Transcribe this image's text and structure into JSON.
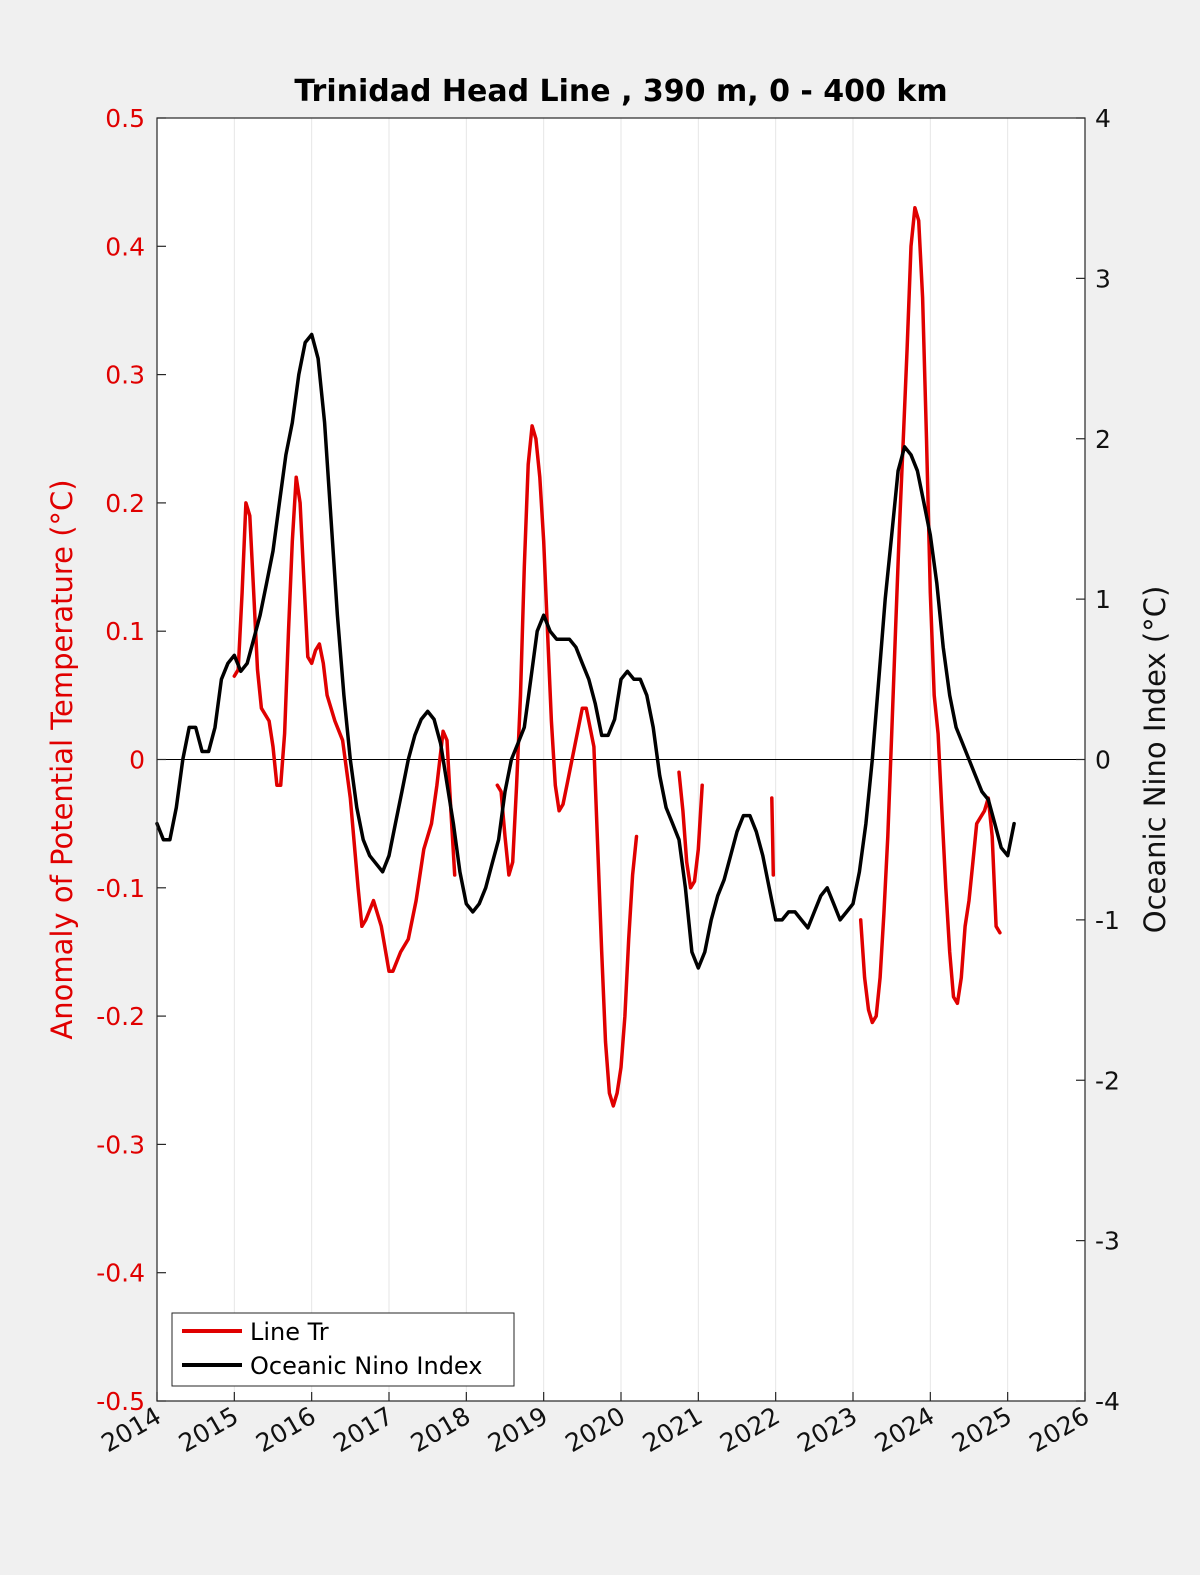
{
  "chart_data": {
    "type": "line",
    "title": "Trinidad Head Line , 390 m, 0 - 400 km",
    "xlabel": "",
    "ylabel_left": "Anomaly of Potential Temperature (°C)",
    "ylabel_right": "Oceanic Nino Index (°C)",
    "xlim": [
      2014,
      2026
    ],
    "ylim_left": [
      -0.5,
      0.5
    ],
    "ylim_right": [
      -4,
      4
    ],
    "x_ticks": [
      "2014",
      "2015",
      "2016",
      "2017",
      "2018",
      "2019",
      "2020",
      "2021",
      "2022",
      "2023",
      "2024",
      "2025",
      "2026"
    ],
    "y_ticks_left": [
      "-0.5",
      "-0.4",
      "-0.3",
      "-0.2",
      "-0.1",
      "0",
      "0.1",
      "0.2",
      "0.3",
      "0.4",
      "0.5"
    ],
    "y_ticks_right": [
      "-4",
      "-3",
      "-2",
      "-1",
      "0",
      "1",
      "2",
      "3",
      "4"
    ],
    "grid": "vertical",
    "zero_line": true,
    "legend_position": "bottom-left",
    "colors": {
      "line_tr": "#e00000",
      "oni": "#000000",
      "left_axis": "#e00000",
      "right_axis": "#111111"
    },
    "series": [
      {
        "name": "Line Tr",
        "axis": "left",
        "segments": [
          [
            [
              2015.0,
              0.065
            ],
            [
              2015.05,
              0.07
            ],
            [
              2015.1,
              0.13
            ],
            [
              2015.15,
              0.2
            ],
            [
              2015.2,
              0.19
            ],
            [
              2015.25,
              0.13
            ],
            [
              2015.3,
              0.07
            ],
            [
              2015.35,
              0.04
            ],
            [
              2015.45,
              0.03
            ],
            [
              2015.5,
              0.01
            ],
            [
              2015.55,
              -0.02
            ],
            [
              2015.6,
              -0.02
            ],
            [
              2015.65,
              0.02
            ],
            [
              2015.7,
              0.1
            ],
            [
              2015.75,
              0.17
            ],
            [
              2015.8,
              0.22
            ],
            [
              2015.85,
              0.2
            ],
            [
              2015.9,
              0.14
            ],
            [
              2015.95,
              0.08
            ],
            [
              2016.0,
              0.075
            ],
            [
              2016.05,
              0.085
            ],
            [
              2016.1,
              0.09
            ],
            [
              2016.15,
              0.075
            ],
            [
              2016.2,
              0.05
            ],
            [
              2016.3,
              0.03
            ],
            [
              2016.4,
              0.015
            ],
            [
              2016.5,
              -0.03
            ],
            [
              2016.6,
              -0.1
            ],
            [
              2016.65,
              -0.13
            ],
            [
              2016.7,
              -0.125
            ],
            [
              2016.8,
              -0.11
            ],
            [
              2016.9,
              -0.13
            ],
            [
              2017.0,
              -0.165
            ],
            [
              2017.05,
              -0.165
            ],
            [
              2017.15,
              -0.15
            ],
            [
              2017.25,
              -0.14
            ],
            [
              2017.35,
              -0.11
            ],
            [
              2017.45,
              -0.07
            ],
            [
              2017.55,
              -0.05
            ],
            [
              2017.62,
              -0.02
            ],
            [
              2017.7,
              0.022
            ],
            [
              2017.75,
              0.015
            ],
            [
              2017.8,
              -0.04
            ],
            [
              2017.85,
              -0.09
            ]
          ],
          [
            [
              2018.4,
              -0.02
            ],
            [
              2018.45,
              -0.025
            ],
            [
              2018.5,
              -0.06
            ],
            [
              2018.55,
              -0.09
            ],
            [
              2018.6,
              -0.08
            ],
            [
              2018.65,
              -0.02
            ],
            [
              2018.7,
              0.05
            ],
            [
              2018.75,
              0.15
            ],
            [
              2018.8,
              0.23
            ],
            [
              2018.85,
              0.26
            ],
            [
              2018.9,
              0.25
            ],
            [
              2018.95,
              0.22
            ],
            [
              2019.0,
              0.17
            ],
            [
              2019.05,
              0.1
            ],
            [
              2019.1,
              0.03
            ],
            [
              2019.15,
              -0.02
            ],
            [
              2019.2,
              -0.04
            ],
            [
              2019.25,
              -0.035
            ],
            [
              2019.3,
              -0.02
            ],
            [
              2019.4,
              0.01
            ],
            [
              2019.5,
              0.04
            ],
            [
              2019.55,
              0.04
            ],
            [
              2019.65,
              0.01
            ],
            [
              2019.7,
              -0.07
            ],
            [
              2019.75,
              -0.15
            ],
            [
              2019.8,
              -0.22
            ],
            [
              2019.85,
              -0.26
            ],
            [
              2019.9,
              -0.27
            ],
            [
              2019.95,
              -0.26
            ],
            [
              2020.0,
              -0.24
            ],
            [
              2020.05,
              -0.2
            ],
            [
              2020.1,
              -0.14
            ],
            [
              2020.15,
              -0.09
            ],
            [
              2020.2,
              -0.06
            ]
          ],
          [
            [
              2020.75,
              -0.01
            ],
            [
              2020.8,
              -0.04
            ],
            [
              2020.85,
              -0.08
            ],
            [
              2020.9,
              -0.1
            ],
            [
              2020.95,
              -0.095
            ],
            [
              2021.0,
              -0.07
            ],
            [
              2021.05,
              -0.02
            ]
          ],
          [
            [
              2021.95,
              -0.03
            ],
            [
              2021.96,
              -0.06
            ],
            [
              2021.97,
              -0.09
            ]
          ],
          [
            [
              2023.1,
              -0.125
            ],
            [
              2023.15,
              -0.17
            ],
            [
              2023.2,
              -0.195
            ],
            [
              2023.25,
              -0.205
            ],
            [
              2023.3,
              -0.2
            ],
            [
              2023.35,
              -0.17
            ],
            [
              2023.4,
              -0.12
            ],
            [
              2023.45,
              -0.06
            ],
            [
              2023.5,
              0.02
            ],
            [
              2023.55,
              0.1
            ],
            [
              2023.6,
              0.18
            ],
            [
              2023.65,
              0.25
            ],
            [
              2023.7,
              0.32
            ],
            [
              2023.75,
              0.4
            ],
            [
              2023.8,
              0.43
            ],
            [
              2023.85,
              0.42
            ],
            [
              2023.9,
              0.36
            ],
            [
              2023.95,
              0.25
            ],
            [
              2024.0,
              0.13
            ],
            [
              2024.05,
              0.05
            ],
            [
              2024.1,
              0.02
            ],
            [
              2024.15,
              -0.04
            ],
            [
              2024.2,
              -0.1
            ],
            [
              2024.25,
              -0.15
            ],
            [
              2024.3,
              -0.185
            ],
            [
              2024.35,
              -0.19
            ],
            [
              2024.4,
              -0.17
            ],
            [
              2024.45,
              -0.13
            ],
            [
              2024.5,
              -0.11
            ],
            [
              2024.55,
              -0.08
            ],
            [
              2024.6,
              -0.05
            ],
            [
              2024.65,
              -0.045
            ],
            [
              2024.7,
              -0.04
            ],
            [
              2024.75,
              -0.03
            ],
            [
              2024.8,
              -0.06
            ],
            [
              2024.85,
              -0.13
            ],
            [
              2024.9,
              -0.135
            ]
          ]
        ]
      },
      {
        "name": "Oceanic Nino Index",
        "axis": "right",
        "x": [
          2014.0,
          2014.083,
          2014.167,
          2014.25,
          2014.333,
          2014.417,
          2014.5,
          2014.583,
          2014.667,
          2014.75,
          2014.833,
          2014.917,
          2015.0,
          2015.083,
          2015.167,
          2015.25,
          2015.333,
          2015.417,
          2015.5,
          2015.583,
          2015.667,
          2015.75,
          2015.833,
          2015.917,
          2016.0,
          2016.083,
          2016.167,
          2016.25,
          2016.333,
          2016.417,
          2016.5,
          2016.583,
          2016.667,
          2016.75,
          2016.833,
          2016.917,
          2017.0,
          2017.083,
          2017.167,
          2017.25,
          2017.333,
          2017.417,
          2017.5,
          2017.583,
          2017.667,
          2017.75,
          2017.833,
          2017.917,
          2018.0,
          2018.083,
          2018.167,
          2018.25,
          2018.333,
          2018.417,
          2018.5,
          2018.583,
          2018.667,
          2018.75,
          2018.833,
          2018.917,
          2019.0,
          2019.083,
          2019.167,
          2019.25,
          2019.333,
          2019.417,
          2019.5,
          2019.583,
          2019.667,
          2019.75,
          2019.833,
          2019.917,
          2020.0,
          2020.083,
          2020.167,
          2020.25,
          2020.333,
          2020.417,
          2020.5,
          2020.583,
          2020.667,
          2020.75,
          2020.833,
          2020.917,
          2021.0,
          2021.083,
          2021.167,
          2021.25,
          2021.333,
          2021.417,
          2021.5,
          2021.583,
          2021.667,
          2021.75,
          2021.833,
          2021.917,
          2022.0,
          2022.083,
          2022.167,
          2022.25,
          2022.333,
          2022.417,
          2022.5,
          2022.583,
          2022.667,
          2022.75,
          2022.833,
          2022.917,
          2023.0,
          2023.083,
          2023.167,
          2023.25,
          2023.333,
          2023.417,
          2023.5,
          2023.583,
          2023.667,
          2023.75,
          2023.833,
          2023.917,
          2024.0,
          2024.083,
          2024.167,
          2024.25,
          2024.333,
          2024.417,
          2024.5,
          2024.583,
          2024.667,
          2024.75,
          2024.833,
          2024.917,
          2025.0,
          2025.083
        ],
        "values": [
          -0.4,
          -0.5,
          -0.5,
          -0.3,
          0.0,
          0.2,
          0.2,
          0.05,
          0.05,
          0.2,
          0.5,
          0.6,
          0.65,
          0.55,
          0.6,
          0.75,
          0.9,
          1.1,
          1.3,
          1.6,
          1.9,
          2.1,
          2.4,
          2.6,
          2.65,
          2.5,
          2.1,
          1.5,
          0.9,
          0.4,
          0.0,
          -0.3,
          -0.5,
          -0.6,
          -0.65,
          -0.7,
          -0.6,
          -0.4,
          -0.2,
          0.0,
          0.15,
          0.25,
          0.3,
          0.25,
          0.1,
          -0.15,
          -0.4,
          -0.7,
          -0.9,
          -0.95,
          -0.9,
          -0.8,
          -0.65,
          -0.5,
          -0.2,
          0.0,
          0.1,
          0.2,
          0.5,
          0.8,
          0.9,
          0.8,
          0.75,
          0.75,
          0.75,
          0.7,
          0.6,
          0.5,
          0.35,
          0.15,
          0.15,
          0.25,
          0.5,
          0.55,
          0.5,
          0.5,
          0.4,
          0.2,
          -0.1,
          -0.3,
          -0.4,
          -0.5,
          -0.8,
          -1.2,
          -1.3,
          -1.2,
          -1.0,
          -0.85,
          -0.75,
          -0.6,
          -0.45,
          -0.35,
          -0.35,
          -0.45,
          -0.6,
          -0.8,
          -1.0,
          -1.0,
          -0.95,
          -0.95,
          -1.0,
          -1.05,
          -0.95,
          -0.85,
          -0.8,
          -0.9,
          -1.0,
          -0.95,
          -0.9,
          -0.7,
          -0.4,
          0.0,
          0.5,
          1.0,
          1.4,
          1.8,
          1.95,
          1.9,
          1.8,
          1.6,
          1.4,
          1.1,
          0.7,
          0.4,
          0.2,
          0.1,
          0.0,
          -0.1,
          -0.2,
          -0.25,
          -0.4,
          -0.55,
          -0.6,
          -0.4
        ]
      }
    ]
  }
}
